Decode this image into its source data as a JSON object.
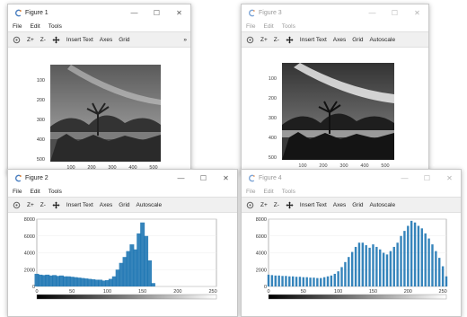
{
  "menu": {
    "file": "File",
    "edit": "Edit",
    "tools": "Tools"
  },
  "toolbar": {
    "zoom_in": "Z+",
    "zoom_out": "Z-",
    "insert_text": "Insert Text",
    "axes": "Axes",
    "grid": "Grid",
    "autoscale": "Autoscale",
    "overflow": "»"
  },
  "window_buttons": {
    "minimize": "—",
    "maximize": "☐",
    "close": "✕"
  },
  "icons": [
    "octave-logo-icon",
    "rotate-icon",
    "pan-icon"
  ],
  "colors": {
    "bar": "#1f77b4",
    "inactive_text": "#9a9a9a"
  },
  "figure1": {
    "title": "Figure 1",
    "y_ticks": [
      "100",
      "200",
      "300",
      "400",
      "500"
    ],
    "x_ticks": [
      "100",
      "200",
      "300",
      "400",
      "500"
    ]
  },
  "figure3": {
    "title": "Figure 3",
    "y_ticks": [
      "100",
      "200",
      "300",
      "400",
      "500"
    ],
    "x_ticks": [
      "100",
      "200",
      "300",
      "400",
      "500"
    ]
  },
  "figure2": {
    "title": "Figure 2"
  },
  "figure4": {
    "title": "Figure 4"
  },
  "chart_data": [
    {
      "type": "bar",
      "figure": "Figure 2",
      "xlim": [
        0,
        255
      ],
      "ylim": [
        0,
        8000
      ],
      "x_ticks": [
        "0",
        "50",
        "100",
        "150",
        "200",
        "250"
      ],
      "y_ticks": [
        "0",
        "2000",
        "4000",
        "6000",
        "8000"
      ],
      "x": [
        0,
        5,
        10,
        15,
        20,
        25,
        30,
        35,
        40,
        45,
        50,
        55,
        60,
        65,
        70,
        75,
        80,
        85,
        90,
        95,
        100,
        105,
        110,
        115,
        120,
        125,
        130,
        135,
        140,
        145,
        150,
        155,
        160,
        165
      ],
      "values": [
        1500,
        1400,
        1350,
        1400,
        1300,
        1350,
        1250,
        1300,
        1200,
        1200,
        1150,
        1100,
        1050,
        1000,
        950,
        900,
        850,
        800,
        800,
        700,
        750,
        900,
        1200,
        2000,
        2800,
        3500,
        4200,
        5000,
        4400,
        6300,
        7600,
        6000,
        3100,
        400
      ]
    },
    {
      "type": "bar",
      "figure": "Figure 4",
      "xlim": [
        0,
        255
      ],
      "ylim": [
        0,
        8000
      ],
      "x_ticks": [
        "0",
        "50",
        "100",
        "150",
        "200",
        "250"
      ],
      "y_ticks": [
        "0",
        "2000",
        "4000",
        "6000",
        "8000"
      ],
      "x": [
        0,
        5,
        10,
        15,
        20,
        25,
        30,
        35,
        40,
        45,
        50,
        55,
        60,
        65,
        70,
        75,
        80,
        85,
        90,
        95,
        100,
        105,
        110,
        115,
        120,
        125,
        130,
        135,
        140,
        145,
        150,
        155,
        160,
        165,
        170,
        175,
        180,
        185,
        190,
        195,
        200,
        205,
        210,
        215,
        220,
        225,
        230,
        235,
        240,
        245,
        250,
        255
      ],
      "values": [
        1400,
        1350,
        1300,
        1300,
        1250,
        1250,
        1200,
        1200,
        1150,
        1150,
        1100,
        1100,
        1050,
        1050,
        1000,
        1000,
        1100,
        1200,
        1300,
        1500,
        1800,
        2300,
        2900,
        3500,
        4100,
        4700,
        5200,
        5200,
        4900,
        4600,
        5000,
        4700,
        4400,
        4000,
        3800,
        4200,
        4700,
        5200,
        6000,
        6600,
        7200,
        7800,
        7600,
        7200,
        6900,
        6300,
        5700,
        5000,
        4200,
        3400,
        2400,
        1200
      ]
    }
  ]
}
